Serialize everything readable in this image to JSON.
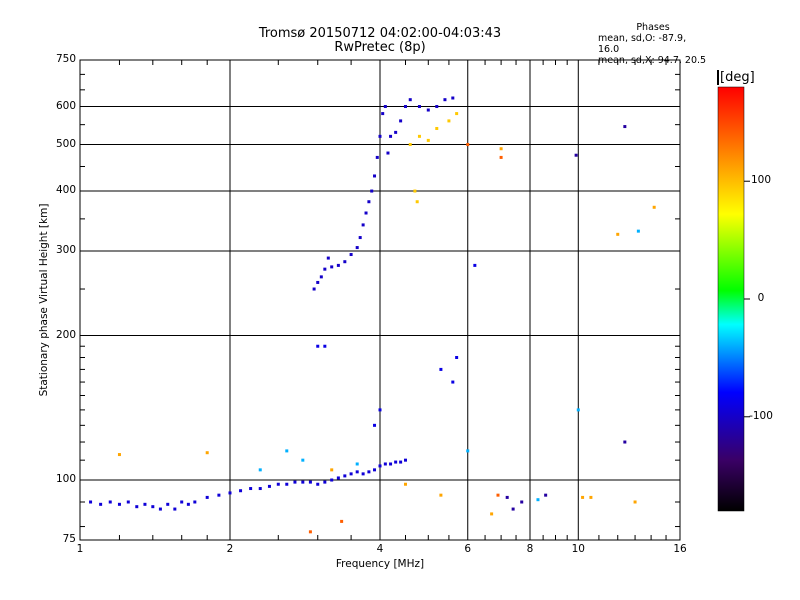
{
  "chart_data": {
    "type": "scatter",
    "title": "Tromsø 20150712 04:02:00-04:03:43",
    "subtitle": "RwPretec (8p)",
    "xlabel": "Frequency [MHz]",
    "ylabel": "Stationary phase Virtual Height [km]",
    "x_scale": "log",
    "y_scale": "log",
    "xlim": [
      1,
      16
    ],
    "ylim": [
      75,
      750
    ],
    "x_ticks": [
      "1",
      "2",
      "4",
      "6",
      "8",
      "10",
      "16"
    ],
    "y_ticks": [
      "75",
      "100",
      "200",
      "300",
      "400",
      "500",
      "600",
      "750"
    ],
    "grid": true,
    "colorbar": {
      "label": "[deg]",
      "range": [
        -180,
        180
      ],
      "ticks": [
        "100",
        "0",
        "-100"
      ],
      "colors": [
        "#000000",
        "#3a0066",
        "#0000ff",
        "#00ffff",
        "#00ff00",
        "#ffff00",
        "#ff0000"
      ]
    },
    "phase_stats": {
      "heading": "Phases",
      "line_o": "mean, sd,O: -87.9, 16.0",
      "line_x": "mean, sd,X:  94.7, 20.5"
    },
    "series": [
      {
        "points": [
          [
            1.05,
            90
          ],
          [
            1.1,
            89
          ],
          [
            1.15,
            90
          ],
          [
            1.2,
            89
          ],
          [
            1.25,
            90
          ],
          [
            1.3,
            88
          ],
          [
            1.35,
            89
          ],
          [
            1.4,
            88
          ],
          [
            1.45,
            87
          ],
          [
            1.5,
            89
          ],
          [
            1.55,
            87
          ],
          [
            1.6,
            90
          ],
          [
            1.65,
            89
          ],
          [
            1.7,
            90
          ],
          [
            1.8,
            92
          ],
          [
            1.9,
            93
          ],
          [
            2.0,
            94
          ],
          [
            2.1,
            95
          ],
          [
            2.2,
            96
          ],
          [
            2.3,
            96
          ],
          [
            2.4,
            97
          ],
          [
            2.5,
            98
          ],
          [
            2.6,
            98
          ],
          [
            2.7,
            99
          ],
          [
            2.8,
            99
          ],
          [
            2.9,
            99
          ],
          [
            3.0,
            98
          ],
          [
            3.1,
            99
          ],
          [
            3.2,
            100
          ],
          [
            3.3,
            101
          ],
          [
            3.4,
            102
          ],
          [
            3.5,
            103
          ],
          [
            3.6,
            104
          ],
          [
            3.7,
            103
          ],
          [
            3.8,
            104
          ],
          [
            3.9,
            105
          ],
          [
            4.0,
            107
          ],
          [
            4.1,
            108
          ],
          [
            4.2,
            108
          ],
          [
            4.3,
            109
          ],
          [
            4.4,
            109
          ],
          [
            4.5,
            110
          ]
        ],
        "phase": -95
      },
      {
        "points": [
          [
            2.95,
            250
          ],
          [
            3.0,
            258
          ],
          [
            3.05,
            265
          ],
          [
            3.1,
            275
          ],
          [
            3.15,
            290
          ],
          [
            3.2,
            278
          ],
          [
            3.3,
            280
          ],
          [
            3.4,
            285
          ],
          [
            3.5,
            295
          ],
          [
            3.6,
            305
          ],
          [
            3.65,
            320
          ],
          [
            3.7,
            340
          ],
          [
            3.75,
            360
          ],
          [
            3.8,
            380
          ],
          [
            3.85,
            400
          ],
          [
            3.9,
            430
          ],
          [
            3.95,
            470
          ],
          [
            4.0,
            520
          ],
          [
            4.05,
            580
          ],
          [
            4.1,
            600
          ],
          [
            4.15,
            480
          ],
          [
            4.2,
            520
          ],
          [
            4.3,
            530
          ],
          [
            4.4,
            560
          ],
          [
            4.5,
            600
          ],
          [
            4.6,
            620
          ],
          [
            4.8,
            600
          ],
          [
            5.0,
            590
          ],
          [
            5.2,
            600
          ],
          [
            5.4,
            620
          ],
          [
            5.6,
            625
          ]
        ],
        "phase": -100
      },
      {
        "points": [
          [
            3.0,
            190
          ],
          [
            3.1,
            190
          ],
          [
            3.9,
            130
          ],
          [
            4.0,
            140
          ],
          [
            5.3,
            170
          ],
          [
            5.6,
            160
          ],
          [
            5.7,
            180
          ],
          [
            6.2,
            280
          ]
        ],
        "phase": -90
      },
      {
        "points": [
          [
            4.6,
            500
          ],
          [
            4.8,
            520
          ],
          [
            5.0,
            510
          ],
          [
            5.2,
            540
          ],
          [
            5.5,
            560
          ],
          [
            5.7,
            580
          ],
          [
            4.7,
            400
          ],
          [
            4.75,
            380
          ]
        ],
        "phase": 95
      },
      {
        "points": [
          [
            2.6,
            115
          ],
          [
            2.8,
            110
          ],
          [
            2.3,
            105
          ],
          [
            3.6,
            108
          ],
          [
            6.0,
            115
          ],
          [
            8.3,
            91
          ],
          [
            10.0,
            140
          ],
          [
            13.2,
            330
          ]
        ],
        "phase": -40
      },
      {
        "points": [
          [
            1.2,
            113
          ],
          [
            1.8,
            114
          ],
          [
            3.2,
            105
          ],
          [
            4.5,
            98
          ],
          [
            5.3,
            93
          ],
          [
            10.2,
            92
          ],
          [
            10.6,
            92
          ],
          [
            13.0,
            90
          ],
          [
            14.2,
            370
          ],
          [
            12.0,
            325
          ],
          [
            6.7,
            85
          ],
          [
            7.0,
            490
          ]
        ],
        "phase": 110
      },
      {
        "points": [
          [
            12.4,
            545
          ],
          [
            12.4,
            120
          ],
          [
            9.9,
            475
          ],
          [
            7.4,
            87
          ],
          [
            7.7,
            90
          ],
          [
            7.2,
            92
          ],
          [
            8.6,
            93
          ]
        ],
        "phase": -115
      },
      {
        "points": [
          [
            2.9,
            78
          ],
          [
            3.35,
            82
          ],
          [
            6.0,
            500
          ],
          [
            7.0,
            470
          ],
          [
            6.9,
            93
          ]
        ],
        "phase": 140
      }
    ]
  }
}
